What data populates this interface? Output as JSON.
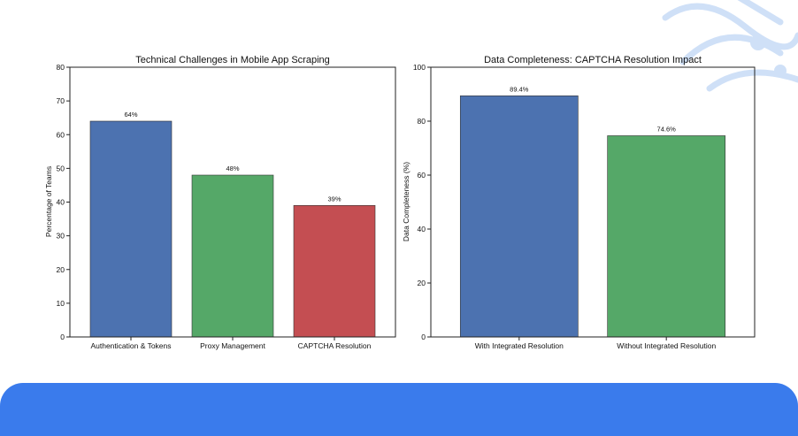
{
  "colors": {
    "blue": "#4c72b0",
    "green": "#55a868",
    "red": "#c44e52",
    "band": "#3a7bec",
    "deco": "#cfe0f7"
  },
  "chart_data": [
    {
      "type": "bar",
      "title": "Technical Challenges in Mobile App Scraping",
      "xlabel": "",
      "ylabel": "Percentage of Teams",
      "categories": [
        "Authentication & Tokens",
        "Proxy Management",
        "CAPTCHA Resolution"
      ],
      "values": [
        64,
        48,
        39
      ],
      "value_labels": [
        "64%",
        "48%",
        "39%"
      ],
      "ylim": [
        0,
        80
      ],
      "yticks": [
        0,
        10,
        20,
        30,
        40,
        50,
        60,
        70,
        80
      ],
      "bar_colors": [
        "#4c72b0",
        "#55a868",
        "#c44e52"
      ],
      "grid": false
    },
    {
      "type": "bar",
      "title": "Data Completeness: CAPTCHA Resolution Impact",
      "xlabel": "",
      "ylabel": "Data Completeness (%)",
      "categories": [
        "With Integrated Resolution",
        "Without Integrated Resolution"
      ],
      "values": [
        89.4,
        74.6
      ],
      "value_labels": [
        "89.4%",
        "74.6%"
      ],
      "ylim": [
        0,
        100
      ],
      "yticks": [
        0,
        20,
        40,
        60,
        80,
        100
      ],
      "bar_colors": [
        "#4c72b0",
        "#55a868"
      ],
      "grid": false
    }
  ]
}
